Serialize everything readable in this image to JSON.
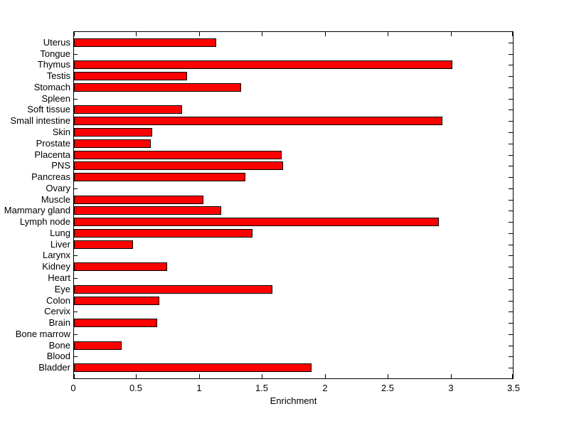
{
  "chart_data": {
    "type": "bar",
    "orientation": "horizontal",
    "title": "",
    "xlabel": "Enrichment",
    "ylabel": "",
    "xlim": [
      0,
      3.5
    ],
    "xticks": [
      0,
      0.5,
      1,
      1.5,
      2,
      2.5,
      3,
      3.5
    ],
    "xtick_labels": [
      "0",
      "0.5",
      "1",
      "1.5",
      "2",
      "2.5",
      "3",
      "3.5"
    ],
    "grid": false,
    "legend": null,
    "categories_top_to_bottom": [
      "Uterus",
      "Tongue",
      "Thymus",
      "Testis",
      "Stomach",
      "Spleen",
      "Soft tissue",
      "Small intestine",
      "Skin",
      "Prostate",
      "Placenta",
      "PNS",
      "Pancreas",
      "Ovary",
      "Muscle",
      "Mammary gland",
      "Lymph node",
      "Lung",
      "Liver",
      "Larynx",
      "Kidney",
      "Heart",
      "Eye",
      "Colon",
      "Cervix",
      "Brain",
      "Bone marrow",
      "Bone",
      "Blood",
      "Bladder"
    ],
    "values": [
      1.13,
      0,
      3.01,
      0.9,
      1.33,
      0,
      0.86,
      2.93,
      0.62,
      0.61,
      1.65,
      1.66,
      1.36,
      0,
      1.03,
      1.17,
      2.9,
      1.42,
      0.47,
      0,
      0.74,
      0,
      1.58,
      0.68,
      0,
      0.66,
      0,
      0.38,
      0,
      1.89
    ],
    "colors": {
      "bar_fill": "#FF0000",
      "bar_edge": "#000000",
      "axis": "#000000",
      "text": "#000000",
      "background": "#FFFFFF"
    }
  }
}
